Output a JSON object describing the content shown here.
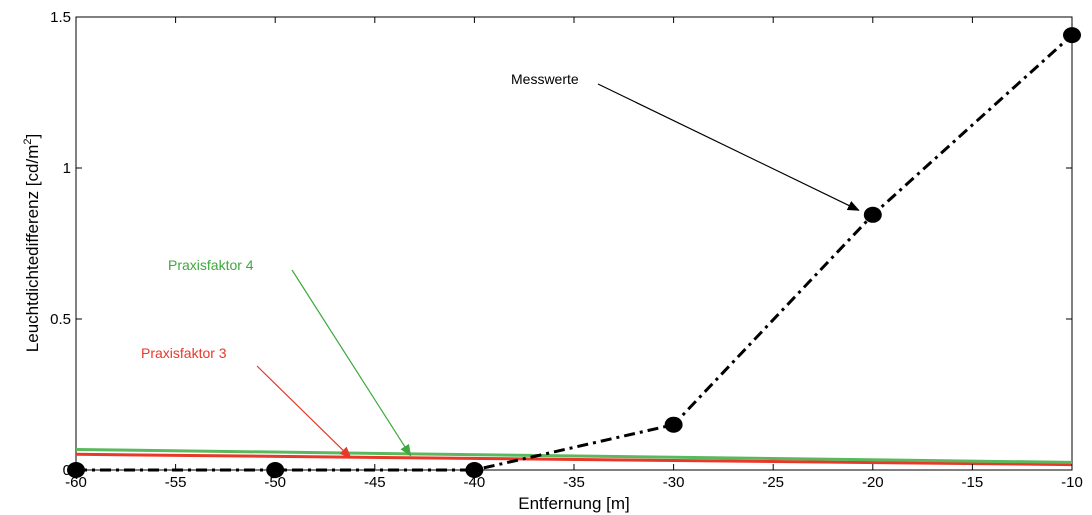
{
  "chart_data": {
    "type": "line",
    "xlabel": "Entfernung [m]",
    "ylabel": "Leuchtdichtedifferenz [cd/m",
    "ylabel_superscript": "2",
    "ylabel_suffix": "]",
    "xlim": [
      -60,
      -10
    ],
    "ylim": [
      0,
      1.5
    ],
    "xticks": [
      -60,
      -55,
      -50,
      -45,
      -40,
      -35,
      -30,
      -25,
      -20,
      -15,
      -10
    ],
    "yticks": [
      0,
      0.5,
      1,
      1.5
    ],
    "xtick_labels": [
      "-60",
      "-55",
      "-50",
      "-45",
      "-40",
      "-35",
      "-30",
      "-25",
      "-20",
      "-15",
      "-10"
    ],
    "ytick_labels": [
      "0",
      "0.5",
      "1",
      "1.5"
    ],
    "grid": false,
    "series": [
      {
        "key": "messwerte",
        "name": "Messwerte",
        "color": "#000000",
        "style": "dash-dot",
        "markers": true,
        "x": [
          -60,
          -50,
          -40,
          -30,
          -20,
          -10
        ],
        "y": [
          0.0,
          0.0,
          0.0,
          0.15,
          0.845,
          1.44
        ]
      },
      {
        "key": "praxisfaktor3",
        "name": "Praxisfaktor 3",
        "color": "#e8382a",
        "style": "solid",
        "markers": false,
        "x": [
          -60,
          -10
        ],
        "y": [
          0.052,
          0.018
        ]
      },
      {
        "key": "praxisfaktor4",
        "name": "Praxisfaktor 4",
        "color": "#5cb85c",
        "style": "solid",
        "markers": false,
        "x": [
          -60,
          -10
        ],
        "y": [
          0.068,
          0.025
        ]
      }
    ],
    "annotations": [
      {
        "key": "messwerte",
        "text": "Messwerte",
        "color": "#000000",
        "arrow_to": [
          -20.7,
          0.86
        ]
      },
      {
        "key": "praxisfaktor4",
        "text": "Praxisfaktor 4",
        "color": "#3ea83e",
        "arrow_to": [
          -43.2,
          0.047
        ]
      },
      {
        "key": "praxisfaktor3",
        "text": "Praxisfaktor 3",
        "color": "#e8382a",
        "arrow_to": [
          -46.2,
          0.04
        ]
      }
    ]
  }
}
